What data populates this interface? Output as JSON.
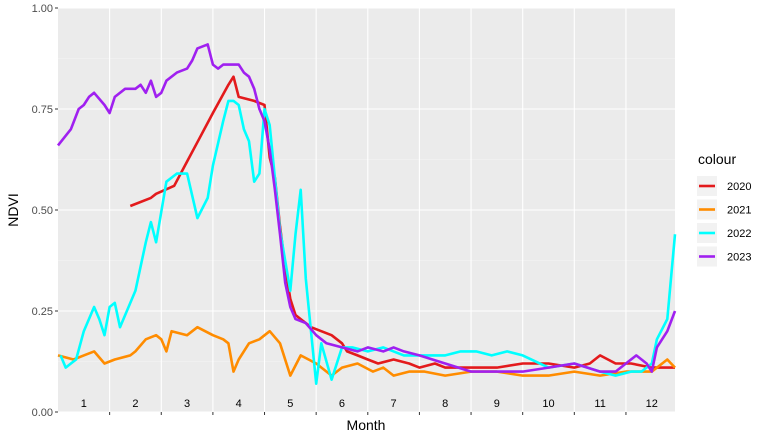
{
  "chart_data": {
    "type": "line",
    "xlabel": "Month",
    "ylabel": "NDVI",
    "ylim": [
      0,
      1
    ],
    "yticks": [
      "0.00",
      "0.25",
      "0.50",
      "0.75",
      "1.00"
    ],
    "yticks_values": [
      0,
      0.25,
      0.5,
      0.75,
      1.0
    ],
    "month_labels": [
      "1",
      "2",
      "3",
      "4",
      "5",
      "6",
      "7",
      "8",
      "9",
      "10",
      "11",
      "12"
    ],
    "xlim": [
      0.5,
      12.45
    ],
    "legend": {
      "title": "colour",
      "position": "right"
    },
    "grid": true,
    "series": [
      {
        "name": "2020",
        "color": "#e31a1c",
        "x": [
          1.9,
          2.3,
          2.4,
          2.75,
          3.0,
          3.25,
          3.5,
          3.8,
          3.9,
          4.0,
          4.3,
          4.5,
          4.6,
          4.7,
          4.8,
          4.9,
          5.0,
          5.1,
          5.2,
          5.4,
          5.6,
          5.8,
          6.0,
          6.1,
          6.3,
          6.5,
          6.7,
          7.0,
          7.3,
          7.5,
          7.8,
          8.0,
          8.5,
          9.0,
          9.5,
          10.0,
          10.5,
          10.8,
          11.0,
          11.3,
          11.6,
          12.0,
          12.45
        ],
        "values": [
          0.51,
          0.53,
          0.54,
          0.56,
          0.62,
          0.68,
          0.74,
          0.81,
          0.83,
          0.78,
          0.77,
          0.76,
          0.63,
          0.58,
          0.46,
          0.36,
          0.28,
          0.24,
          0.23,
          0.21,
          0.2,
          0.19,
          0.17,
          0.15,
          0.14,
          0.13,
          0.12,
          0.13,
          0.12,
          0.11,
          0.12,
          0.11,
          0.11,
          0.11,
          0.12,
          0.12,
          0.11,
          0.12,
          0.14,
          0.12,
          0.12,
          0.11,
          0.11
        ]
      },
      {
        "name": "2021",
        "color": "#ff8c00",
        "x": [
          0.5,
          0.8,
          1.0,
          1.2,
          1.4,
          1.6,
          1.9,
          2.0,
          2.2,
          2.4,
          2.5,
          2.6,
          2.7,
          3.0,
          3.2,
          3.5,
          3.7,
          3.8,
          3.9,
          4.0,
          4.2,
          4.4,
          4.6,
          4.8,
          5.0,
          5.2,
          5.5,
          5.8,
          6.0,
          6.3,
          6.6,
          6.8,
          7.0,
          7.3,
          7.6,
          8.0,
          8.5,
          9.0,
          9.5,
          10.0,
          10.5,
          11.0,
          11.5,
          12.0,
          12.3,
          12.45
        ],
        "values": [
          0.14,
          0.13,
          0.14,
          0.15,
          0.12,
          0.13,
          0.14,
          0.15,
          0.18,
          0.19,
          0.18,
          0.15,
          0.2,
          0.19,
          0.21,
          0.19,
          0.18,
          0.17,
          0.1,
          0.13,
          0.17,
          0.18,
          0.2,
          0.17,
          0.09,
          0.14,
          0.12,
          0.09,
          0.11,
          0.12,
          0.1,
          0.11,
          0.09,
          0.1,
          0.1,
          0.09,
          0.1,
          0.1,
          0.09,
          0.09,
          0.1,
          0.09,
          0.1,
          0.1,
          0.13,
          0.11
        ]
      },
      {
        "name": "2022",
        "color": "#00ffff",
        "x": [
          0.55,
          0.65,
          0.75,
          0.85,
          1.0,
          1.2,
          1.3,
          1.4,
          1.5,
          1.6,
          1.7,
          2.0,
          2.2,
          2.3,
          2.4,
          2.6,
          2.8,
          3.0,
          3.2,
          3.4,
          3.5,
          3.7,
          3.8,
          3.9,
          4.0,
          4.1,
          4.2,
          4.3,
          4.4,
          4.5,
          4.6,
          4.8,
          5.0,
          5.1,
          5.2,
          5.3,
          5.4,
          5.5,
          5.6,
          5.8,
          6.0,
          6.2,
          6.5,
          6.8,
          7.0,
          7.2,
          7.5,
          8.0,
          8.3,
          8.6,
          8.9,
          9.2,
          9.5,
          10.0,
          10.5,
          11.0,
          11.3,
          11.6,
          11.8,
          12.0,
          12.1,
          12.3,
          12.45
        ],
        "values": [
          0.14,
          0.11,
          0.12,
          0.13,
          0.2,
          0.26,
          0.23,
          0.19,
          0.26,
          0.27,
          0.21,
          0.3,
          0.42,
          0.47,
          0.42,
          0.57,
          0.59,
          0.59,
          0.48,
          0.53,
          0.61,
          0.72,
          0.77,
          0.77,
          0.76,
          0.7,
          0.67,
          0.57,
          0.59,
          0.75,
          0.71,
          0.45,
          0.3,
          0.44,
          0.55,
          0.33,
          0.2,
          0.07,
          0.17,
          0.08,
          0.16,
          0.16,
          0.15,
          0.16,
          0.15,
          0.14,
          0.14,
          0.14,
          0.15,
          0.15,
          0.14,
          0.15,
          0.14,
          0.11,
          0.12,
          0.1,
          0.09,
          0.1,
          0.1,
          0.12,
          0.18,
          0.23,
          0.44
        ]
      },
      {
        "name": "2023",
        "color": "#a020f0",
        "x": [
          0.5,
          0.75,
          0.9,
          1.0,
          1.1,
          1.2,
          1.4,
          1.5,
          1.6,
          1.8,
          2.0,
          2.1,
          2.2,
          2.3,
          2.4,
          2.5,
          2.6,
          2.8,
          3.0,
          3.1,
          3.2,
          3.4,
          3.5,
          3.6,
          3.7,
          3.8,
          3.9,
          4.0,
          4.1,
          4.2,
          4.3,
          4.4,
          4.5,
          4.6,
          4.7,
          4.8,
          4.9,
          5.0,
          5.1,
          5.3,
          5.5,
          5.7,
          6.0,
          6.3,
          6.5,
          6.8,
          7.0,
          7.2,
          7.5,
          8.0,
          8.5,
          9.0,
          9.5,
          10.0,
          10.5,
          11.0,
          11.3,
          11.5,
          11.7,
          11.9,
          12.0,
          12.1,
          12.3,
          12.45
        ],
        "values": [
          0.66,
          0.7,
          0.75,
          0.76,
          0.78,
          0.79,
          0.76,
          0.74,
          0.78,
          0.8,
          0.8,
          0.81,
          0.79,
          0.82,
          0.78,
          0.79,
          0.82,
          0.84,
          0.85,
          0.87,
          0.9,
          0.91,
          0.86,
          0.85,
          0.86,
          0.86,
          0.86,
          0.86,
          0.84,
          0.83,
          0.8,
          0.75,
          0.72,
          0.65,
          0.55,
          0.44,
          0.32,
          0.26,
          0.23,
          0.22,
          0.19,
          0.17,
          0.16,
          0.15,
          0.16,
          0.15,
          0.16,
          0.15,
          0.14,
          0.12,
          0.1,
          0.1,
          0.1,
          0.11,
          0.12,
          0.1,
          0.1,
          0.12,
          0.14,
          0.12,
          0.1,
          0.16,
          0.2,
          0.25
        ]
      }
    ]
  }
}
